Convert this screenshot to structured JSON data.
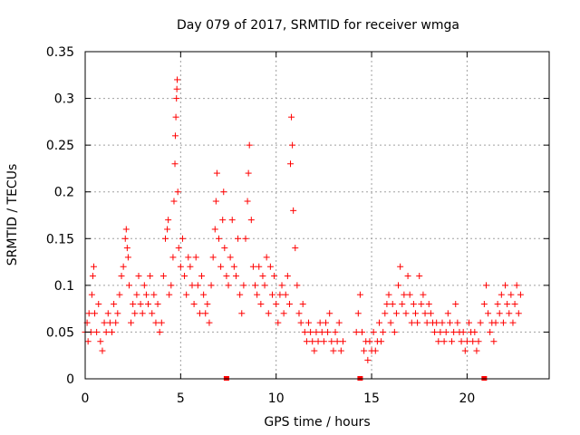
{
  "chart_data": {
    "type": "scatter",
    "title": "Day 079 of 2017, SRMTID for receiver wmga",
    "xlabel": "GPS time / hours",
    "ylabel": "SRMTID / TECUs",
    "xlim": [
      0,
      24.3
    ],
    "ylim": [
      0,
      0.35
    ],
    "xticks": [
      0,
      5,
      10,
      15,
      20
    ],
    "xtick_labels": [
      "0",
      "5",
      "10",
      "15",
      "20"
    ],
    "yticks": [
      0,
      0.05,
      0.1,
      0.15,
      0.2,
      0.25,
      0.3,
      0.35
    ],
    "ytick_labels": [
      "0",
      "0.05",
      "0.1",
      "0.15",
      "0.2",
      "0.25",
      "0.3",
      "0.35"
    ],
    "grid": true,
    "series_color": "#ff0000",
    "marker": "plus",
    "x_axis_markers": [
      7.4,
      14.4,
      20.9
    ],
    "series": [
      {
        "name": "SRMTID",
        "points": [
          [
            0.0,
            0.05
          ],
          [
            0.1,
            0.06
          ],
          [
            0.15,
            0.04
          ],
          [
            0.2,
            0.07
          ],
          [
            0.3,
            0.05
          ],
          [
            0.35,
            0.09
          ],
          [
            0.4,
            0.11
          ],
          [
            0.45,
            0.12
          ],
          [
            0.5,
            0.07
          ],
          [
            0.6,
            0.05
          ],
          [
            0.7,
            0.08
          ],
          [
            0.8,
            0.04
          ],
          [
            0.9,
            0.03
          ],
          [
            1.0,
            0.06
          ],
          [
            1.1,
            0.05
          ],
          [
            1.2,
            0.07
          ],
          [
            1.3,
            0.06
          ],
          [
            1.4,
            0.05
          ],
          [
            1.5,
            0.08
          ],
          [
            1.6,
            0.06
          ],
          [
            1.7,
            0.07
          ],
          [
            1.8,
            0.09
          ],
          [
            1.9,
            0.11
          ],
          [
            2.0,
            0.12
          ],
          [
            2.1,
            0.15
          ],
          [
            2.15,
            0.16
          ],
          [
            2.2,
            0.14
          ],
          [
            2.25,
            0.13
          ],
          [
            2.3,
            0.1
          ],
          [
            2.4,
            0.06
          ],
          [
            2.5,
            0.08
          ],
          [
            2.6,
            0.07
          ],
          [
            2.7,
            0.09
          ],
          [
            2.8,
            0.11
          ],
          [
            2.9,
            0.08
          ],
          [
            3.0,
            0.07
          ],
          [
            3.1,
            0.1
          ],
          [
            3.2,
            0.09
          ],
          [
            3.3,
            0.08
          ],
          [
            3.4,
            0.11
          ],
          [
            3.5,
            0.07
          ],
          [
            3.6,
            0.09
          ],
          [
            3.7,
            0.06
          ],
          [
            3.8,
            0.08
          ],
          [
            3.9,
            0.05
          ],
          [
            4.0,
            0.06
          ],
          [
            4.1,
            0.11
          ],
          [
            4.2,
            0.15
          ],
          [
            4.3,
            0.16
          ],
          [
            4.35,
            0.17
          ],
          [
            4.4,
            0.09
          ],
          [
            4.5,
            0.1
          ],
          [
            4.6,
            0.13
          ],
          [
            4.65,
            0.19
          ],
          [
            4.7,
            0.23
          ],
          [
            4.72,
            0.26
          ],
          [
            4.75,
            0.28
          ],
          [
            4.78,
            0.3
          ],
          [
            4.8,
            0.31
          ],
          [
            4.82,
            0.32
          ],
          [
            4.85,
            0.2
          ],
          [
            4.9,
            0.14
          ],
          [
            5.0,
            0.12
          ],
          [
            5.1,
            0.15
          ],
          [
            5.2,
            0.11
          ],
          [
            5.3,
            0.09
          ],
          [
            5.4,
            0.13
          ],
          [
            5.5,
            0.12
          ],
          [
            5.6,
            0.1
          ],
          [
            5.7,
            0.08
          ],
          [
            5.8,
            0.13
          ],
          [
            5.9,
            0.1
          ],
          [
            6.0,
            0.07
          ],
          [
            6.1,
            0.11
          ],
          [
            6.2,
            0.09
          ],
          [
            6.3,
            0.07
          ],
          [
            6.4,
            0.08
          ],
          [
            6.5,
            0.06
          ],
          [
            6.6,
            0.1
          ],
          [
            6.7,
            0.13
          ],
          [
            6.8,
            0.16
          ],
          [
            6.85,
            0.19
          ],
          [
            6.9,
            0.22
          ],
          [
            7.0,
            0.15
          ],
          [
            7.1,
            0.12
          ],
          [
            7.2,
            0.17
          ],
          [
            7.25,
            0.2
          ],
          [
            7.3,
            0.14
          ],
          [
            7.4,
            0.11
          ],
          [
            7.5,
            0.1
          ],
          [
            7.6,
            0.13
          ],
          [
            7.7,
            0.17
          ],
          [
            7.8,
            0.12
          ],
          [
            7.9,
            0.11
          ],
          [
            8.0,
            0.15
          ],
          [
            8.1,
            0.09
          ],
          [
            8.2,
            0.07
          ],
          [
            8.3,
            0.1
          ],
          [
            8.4,
            0.15
          ],
          [
            8.5,
            0.19
          ],
          [
            8.55,
            0.22
          ],
          [
            8.6,
            0.25
          ],
          [
            8.7,
            0.17
          ],
          [
            8.8,
            0.12
          ],
          [
            8.9,
            0.1
          ],
          [
            9.0,
            0.09
          ],
          [
            9.1,
            0.12
          ],
          [
            9.2,
            0.08
          ],
          [
            9.3,
            0.11
          ],
          [
            9.4,
            0.1
          ],
          [
            9.5,
            0.13
          ],
          [
            9.6,
            0.07
          ],
          [
            9.7,
            0.12
          ],
          [
            9.8,
            0.09
          ],
          [
            9.9,
            0.11
          ],
          [
            10.0,
            0.08
          ],
          [
            10.1,
            0.06
          ],
          [
            10.2,
            0.09
          ],
          [
            10.3,
            0.1
          ],
          [
            10.4,
            0.07
          ],
          [
            10.5,
            0.09
          ],
          [
            10.6,
            0.11
          ],
          [
            10.7,
            0.08
          ],
          [
            10.75,
            0.23
          ],
          [
            10.8,
            0.28
          ],
          [
            10.85,
            0.25
          ],
          [
            10.9,
            0.18
          ],
          [
            11.0,
            0.14
          ],
          [
            11.1,
            0.1
          ],
          [
            11.2,
            0.07
          ],
          [
            11.3,
            0.06
          ],
          [
            11.4,
            0.08
          ],
          [
            11.5,
            0.05
          ],
          [
            11.6,
            0.04
          ],
          [
            11.7,
            0.06
          ],
          [
            11.8,
            0.05
          ],
          [
            11.9,
            0.04
          ],
          [
            12.0,
            0.03
          ],
          [
            12.1,
            0.05
          ],
          [
            12.2,
            0.04
          ],
          [
            12.3,
            0.06
          ],
          [
            12.4,
            0.05
          ],
          [
            12.5,
            0.04
          ],
          [
            12.6,
            0.06
          ],
          [
            12.7,
            0.05
          ],
          [
            12.8,
            0.07
          ],
          [
            12.9,
            0.04
          ],
          [
            13.0,
            0.03
          ],
          [
            13.1,
            0.05
          ],
          [
            13.2,
            0.04
          ],
          [
            13.3,
            0.06
          ],
          [
            13.4,
            0.03
          ],
          [
            13.5,
            0.04
          ],
          [
            14.2,
            0.05
          ],
          [
            14.3,
            0.07
          ],
          [
            14.4,
            0.09
          ],
          [
            14.5,
            0.05
          ],
          [
            14.6,
            0.03
          ],
          [
            14.7,
            0.04
          ],
          [
            14.8,
            0.02
          ],
          [
            14.9,
            0.04
          ],
          [
            15.0,
            0.03
          ],
          [
            15.1,
            0.05
          ],
          [
            15.2,
            0.03
          ],
          [
            15.3,
            0.04
          ],
          [
            15.4,
            0.06
          ],
          [
            15.5,
            0.04
          ],
          [
            15.6,
            0.05
          ],
          [
            15.7,
            0.07
          ],
          [
            15.8,
            0.08
          ],
          [
            15.9,
            0.09
          ],
          [
            16.0,
            0.06
          ],
          [
            16.1,
            0.08
          ],
          [
            16.2,
            0.05
          ],
          [
            16.3,
            0.07
          ],
          [
            16.4,
            0.1
          ],
          [
            16.5,
            0.12
          ],
          [
            16.6,
            0.08
          ],
          [
            16.7,
            0.09
          ],
          [
            16.8,
            0.07
          ],
          [
            16.9,
            0.11
          ],
          [
            17.0,
            0.09
          ],
          [
            17.1,
            0.06
          ],
          [
            17.2,
            0.08
          ],
          [
            17.3,
            0.07
          ],
          [
            17.4,
            0.06
          ],
          [
            17.5,
            0.11
          ],
          [
            17.6,
            0.08
          ],
          [
            17.7,
            0.09
          ],
          [
            17.8,
            0.07
          ],
          [
            17.9,
            0.06
          ],
          [
            18.0,
            0.08
          ],
          [
            18.1,
            0.07
          ],
          [
            18.2,
            0.06
          ],
          [
            18.3,
            0.05
          ],
          [
            18.4,
            0.06
          ],
          [
            18.5,
            0.04
          ],
          [
            18.6,
            0.05
          ],
          [
            18.7,
            0.06
          ],
          [
            18.8,
            0.04
          ],
          [
            18.9,
            0.05
          ],
          [
            19.0,
            0.07
          ],
          [
            19.1,
            0.06
          ],
          [
            19.2,
            0.04
          ],
          [
            19.3,
            0.05
          ],
          [
            19.4,
            0.08
          ],
          [
            19.5,
            0.06
          ],
          [
            19.6,
            0.05
          ],
          [
            19.7,
            0.04
          ],
          [
            19.8,
            0.05
          ],
          [
            19.9,
            0.03
          ],
          [
            20.0,
            0.04
          ],
          [
            20.1,
            0.06
          ],
          [
            20.2,
            0.05
          ],
          [
            20.3,
            0.04
          ],
          [
            20.4,
            0.05
          ],
          [
            20.5,
            0.03
          ],
          [
            20.6,
            0.04
          ],
          [
            20.7,
            0.06
          ],
          [
            20.9,
            0.08
          ],
          [
            21.0,
            0.1
          ],
          [
            21.1,
            0.07
          ],
          [
            21.2,
            0.05
          ],
          [
            21.3,
            0.06
          ],
          [
            21.4,
            0.04
          ],
          [
            21.5,
            0.06
          ],
          [
            21.6,
            0.08
          ],
          [
            21.7,
            0.07
          ],
          [
            21.8,
            0.09
          ],
          [
            21.9,
            0.06
          ],
          [
            22.0,
            0.1
          ],
          [
            22.1,
            0.08
          ],
          [
            22.2,
            0.07
          ],
          [
            22.3,
            0.09
          ],
          [
            22.4,
            0.06
          ],
          [
            22.5,
            0.08
          ],
          [
            22.6,
            0.1
          ],
          [
            22.7,
            0.07
          ],
          [
            22.8,
            0.09
          ]
        ]
      }
    ]
  }
}
